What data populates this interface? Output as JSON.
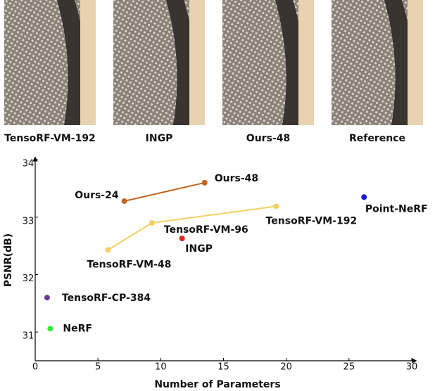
{
  "images": {
    "captions": [
      "TensoRF-VM-192",
      "INGP",
      "Ours-48",
      "Reference"
    ]
  },
  "chart_data": {
    "type": "scatter",
    "xlabel": "Number of Parameters",
    "ylabel": "PSNR(dB)",
    "xlim": [
      0,
      30
    ],
    "xticks": [
      0,
      5,
      10,
      15,
      20,
      25,
      30
    ],
    "ylim": [
      30.5,
      34
    ],
    "yticks": [
      31,
      32,
      33,
      34
    ],
    "series": [
      {
        "color": "#c0651e",
        "connected": true,
        "x": [
          7.1,
          13.5
        ],
        "values": [
          33.28,
          33.6
        ],
        "point_labels": [
          "Ours-24",
          "Ours-48"
        ]
      },
      {
        "color": "#f5d060",
        "connected": true,
        "x": [
          5.8,
          9.3,
          19.2
        ],
        "values": [
          32.43,
          32.9,
          33.19
        ],
        "point_labels": [
          "TensoRF-VM-48",
          "TensoRF-VM-96",
          "TensoRF-VM-192"
        ]
      },
      {
        "color": "#1a1acc",
        "connected": false,
        "x": [
          26.2
        ],
        "values": [
          33.35
        ],
        "point_labels": [
          "Point-NeRF"
        ]
      },
      {
        "color": "#e02020",
        "connected": false,
        "x": [
          11.7
        ],
        "values": [
          32.63
        ],
        "point_labels": [
          "INGP"
        ]
      },
      {
        "color": "#6a3a9a",
        "connected": false,
        "x": [
          0.95
        ],
        "values": [
          31.6
        ],
        "point_labels": [
          "TensoRF-CP-384"
        ]
      },
      {
        "color": "#33ee33",
        "connected": false,
        "x": [
          1.2
        ],
        "values": [
          31.06
        ],
        "point_labels": [
          "NeRF"
        ]
      }
    ]
  }
}
